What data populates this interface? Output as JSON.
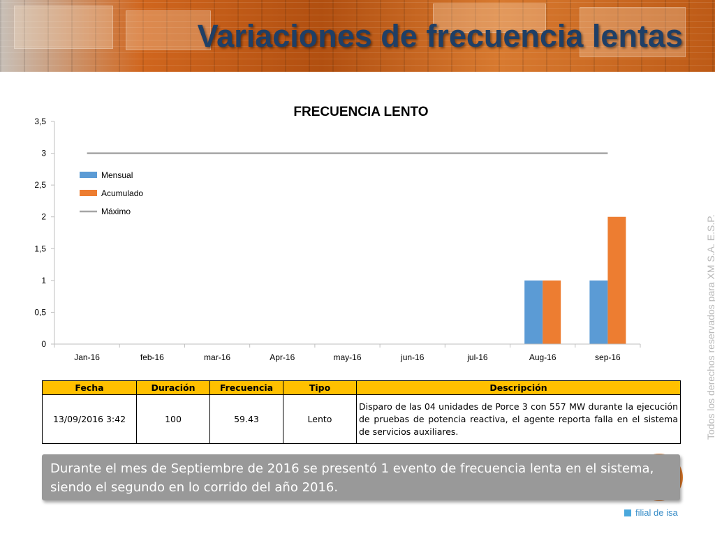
{
  "header": {
    "title": "Variaciones de frecuencia lentas"
  },
  "chart_data": {
    "type": "bar",
    "title": "FRECUENCIA LENTO",
    "xlabel": "",
    "ylabel": "",
    "categories": [
      "Jan-16",
      "feb-16",
      "mar-16",
      "Apr-16",
      "may-16",
      "jun-16",
      "jul-16",
      "Aug-16",
      "sep-16"
    ],
    "ylim": [
      0,
      3.5
    ],
    "yticks": [
      0,
      0.5,
      1,
      1.5,
      2,
      2.5,
      3,
      3.5
    ],
    "ytick_labels": [
      "0",
      "0,5",
      "1",
      "1,5",
      "2",
      "2,5",
      "3",
      "3,5"
    ],
    "grid": false,
    "legend_position": "top-left",
    "series": [
      {
        "name": "Mensual",
        "kind": "bar",
        "color": "#5b9bd5",
        "values": [
          0,
          0,
          0,
          0,
          0,
          0,
          0,
          1,
          1
        ]
      },
      {
        "name": "Acumulado",
        "kind": "bar",
        "color": "#ed7d31",
        "values": [
          0,
          0,
          0,
          0,
          0,
          0,
          0,
          1,
          2
        ]
      },
      {
        "name": "Máximo",
        "kind": "line",
        "color": "#a5a5a5",
        "values": [
          3,
          3,
          3,
          3,
          3,
          3,
          3,
          3,
          3
        ]
      }
    ]
  },
  "table": {
    "headers": [
      "Fecha",
      "Duración",
      "Frecuencia",
      "Tipo",
      "Descripción"
    ],
    "rows": [
      [
        "13/09/2016 3:42",
        "100",
        "59.43",
        "Lento",
        "Disparo de las 04 unidades de Porce 3 con 557 MW durante la ejecución de pruebas de potencia reactiva, el agente reporta falla en el sistema de servicios auxiliares."
      ]
    ]
  },
  "summary": {
    "text": "Durante el mes de Septiembre de 2016 se presentó 1 evento de frecuencia lenta en el sistema, siendo el segundo en lo corrido del año 2016."
  },
  "side_text": "Todos los derechos reservados para XM S.A. E.S.P.",
  "footer": {
    "logo_text": "filial de isa"
  },
  "colors": {
    "title": "#1f3f66",
    "table_header": "#ffc000",
    "summary_bg": "#999999",
    "footer_logo": "#3a8ec8"
  }
}
